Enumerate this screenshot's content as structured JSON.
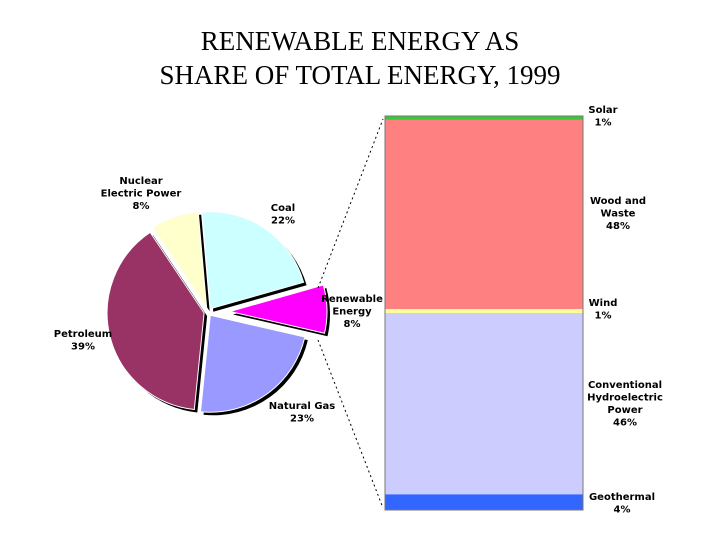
{
  "title_lines": [
    "RENEWABLE ENERGY AS",
    "SHARE OF TOTAL ENERGY, 1999"
  ],
  "chart_data": [
    {
      "type": "pie",
      "slices": [
        {
          "label_lines": [
            "Coal"
          ],
          "pct_text": "22%",
          "value": 22,
          "color": "#CCFFFF"
        },
        {
          "label_lines": [
            "Renewable",
            "Energy"
          ],
          "pct_text": "8%",
          "value": 8,
          "color": "#FF00FF",
          "exploded": true
        },
        {
          "label_lines": [
            "Natural Gas"
          ],
          "pct_text": "23%",
          "value": 23,
          "color": "#9999FF"
        },
        {
          "label_lines": [
            "Petroleum"
          ],
          "pct_text": "39%",
          "value": 39,
          "color": "#993366"
        },
        {
          "label_lines": [
            "Nuclear",
            "Electric Power"
          ],
          "pct_text": "8%",
          "value": 8,
          "color": "#FFFFCC"
        }
      ]
    },
    {
      "type": "bar",
      "stacked": true,
      "segments": [
        {
          "label_lines": [
            "Geothermal"
          ],
          "pct_text": "4%",
          "value": 4,
          "color": "#3366FF"
        },
        {
          "label_lines": [
            "Conventional",
            "Hydroelectric",
            "Power"
          ],
          "pct_text": "46%",
          "value": 46,
          "color": "#CCCCFF"
        },
        {
          "label_lines": [
            "Wind"
          ],
          "pct_text": "1%",
          "value": 1,
          "color": "#FFFF99"
        },
        {
          "label_lines": [
            "Wood and",
            "Waste"
          ],
          "pct_text": "48%",
          "value": 48,
          "color": "#FF8080"
        },
        {
          "label_lines": [
            "Solar"
          ],
          "pct_text": "1%",
          "value": 1,
          "color": "#33CC33"
        }
      ]
    }
  ]
}
